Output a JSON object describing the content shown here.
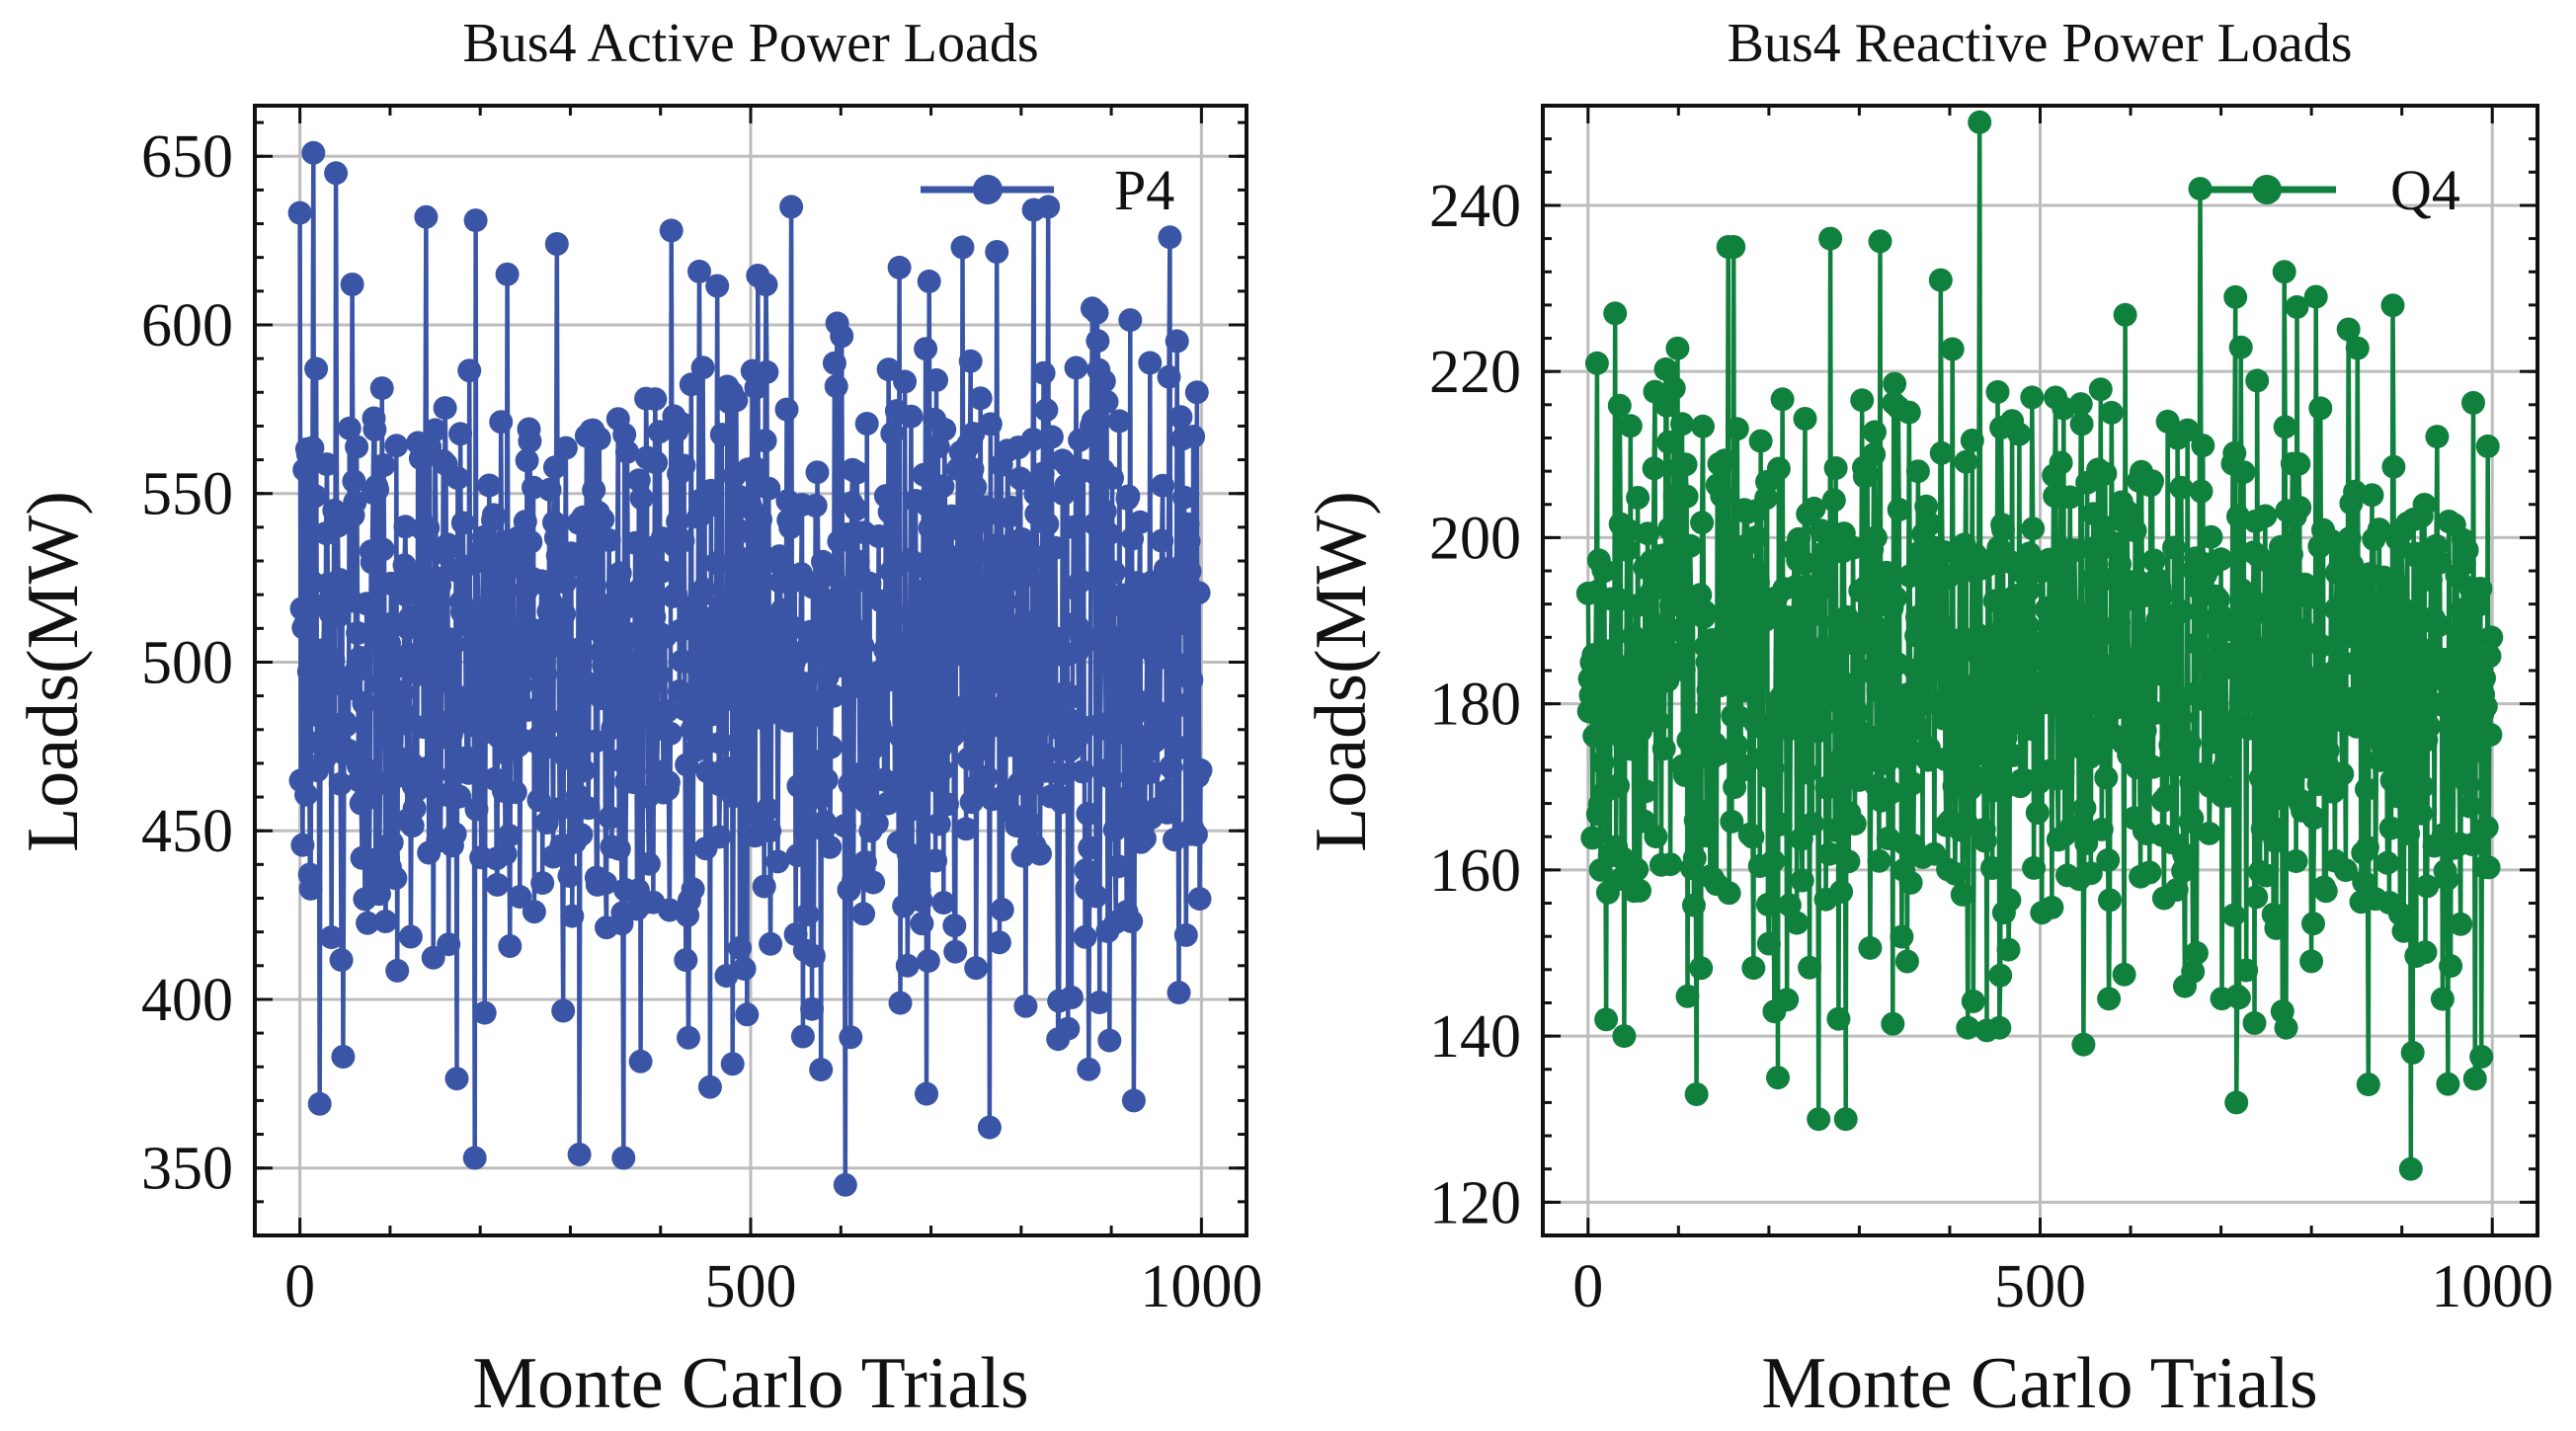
{
  "chart_data": [
    {
      "type": "line",
      "title": "Bus4 Active Power Loads",
      "xlabel": "Monte Carlo Trials",
      "ylabel": "Loads(MW)",
      "xlim": [
        -50,
        1050
      ],
      "ylim": [
        330,
        665
      ],
      "xticks": [
        0,
        500,
        1000
      ],
      "yticks": [
        350,
        400,
        450,
        500,
        550,
        600,
        650
      ],
      "grid": true,
      "legend_position": "top-right",
      "series": [
        {
          "name": "P4",
          "color": "#3a55a6",
          "n_points": 1000,
          "mean": 500,
          "spread": 48,
          "min": 345,
          "max": 651,
          "highlights": [
            {
              "x": 5,
              "y": 557
            },
            {
              "x": 15,
              "y": 651
            },
            {
              "x": 18,
              "y": 587
            },
            {
              "x": 22,
              "y": 369
            },
            {
              "x": 40,
              "y": 645
            },
            {
              "x": 48,
              "y": 383
            },
            {
              "x": 58,
              "y": 612
            },
            {
              "x": 140,
              "y": 632
            },
            {
              "x": 195,
              "y": 631
            },
            {
              "x": 205,
              "y": 396
            },
            {
              "x": 230,
              "y": 615
            },
            {
              "x": 285,
              "y": 624
            },
            {
              "x": 310,
              "y": 354
            },
            {
              "x": 412,
              "y": 628
            },
            {
              "x": 455,
              "y": 374
            },
            {
              "x": 545,
              "y": 635
            },
            {
              "x": 558,
              "y": 389
            },
            {
              "x": 605,
              "y": 345
            },
            {
              "x": 665,
              "y": 617
            },
            {
              "x": 695,
              "y": 372
            },
            {
              "x": 735,
              "y": 623
            },
            {
              "x": 805,
              "y": 398
            },
            {
              "x": 830,
              "y": 635
            },
            {
              "x": 925,
              "y": 370
            },
            {
              "x": 965,
              "y": 626
            },
            {
              "x": 975,
              "y": 402
            },
            {
              "x": 995,
              "y": 580
            }
          ]
        }
      ]
    },
    {
      "type": "line",
      "title": "Bus4 Reactive Power Loads",
      "xlabel": "Monte Carlo Trials",
      "ylabel": "Loads(MW)",
      "xlim": [
        -50,
        1050
      ],
      "ylim": [
        116,
        252
      ],
      "xticks": [
        0,
        500,
        1000
      ],
      "yticks": [
        120,
        140,
        160,
        180,
        200,
        220,
        240
      ],
      "grid": true,
      "legend_position": "top-right",
      "series": [
        {
          "name": "Q4",
          "color": "#10803d",
          "n_points": 1000,
          "mean": 183,
          "spread": 17,
          "min": 124,
          "max": 250,
          "highlights": [
            {
              "x": 2,
              "y": 183
            },
            {
              "x": 10,
              "y": 221
            },
            {
              "x": 30,
              "y": 227
            },
            {
              "x": 20,
              "y": 142
            },
            {
              "x": 40,
              "y": 140
            },
            {
              "x": 120,
              "y": 133
            },
            {
              "x": 155,
              "y": 235
            },
            {
              "x": 210,
              "y": 135
            },
            {
              "x": 255,
              "y": 130
            },
            {
              "x": 268,
              "y": 236
            },
            {
              "x": 285,
              "y": 130
            },
            {
              "x": 390,
              "y": 231
            },
            {
              "x": 420,
              "y": 141
            },
            {
              "x": 433,
              "y": 250
            },
            {
              "x": 455,
              "y": 141
            },
            {
              "x": 660,
              "y": 146
            },
            {
              "x": 770,
              "y": 232
            },
            {
              "x": 772,
              "y": 141
            },
            {
              "x": 800,
              "y": 149
            },
            {
              "x": 805,
              "y": 229
            },
            {
              "x": 910,
              "y": 124
            },
            {
              "x": 912,
              "y": 138
            },
            {
              "x": 995,
              "y": 211
            },
            {
              "x": 1000,
              "y": 188
            }
          ]
        }
      ]
    }
  ]
}
